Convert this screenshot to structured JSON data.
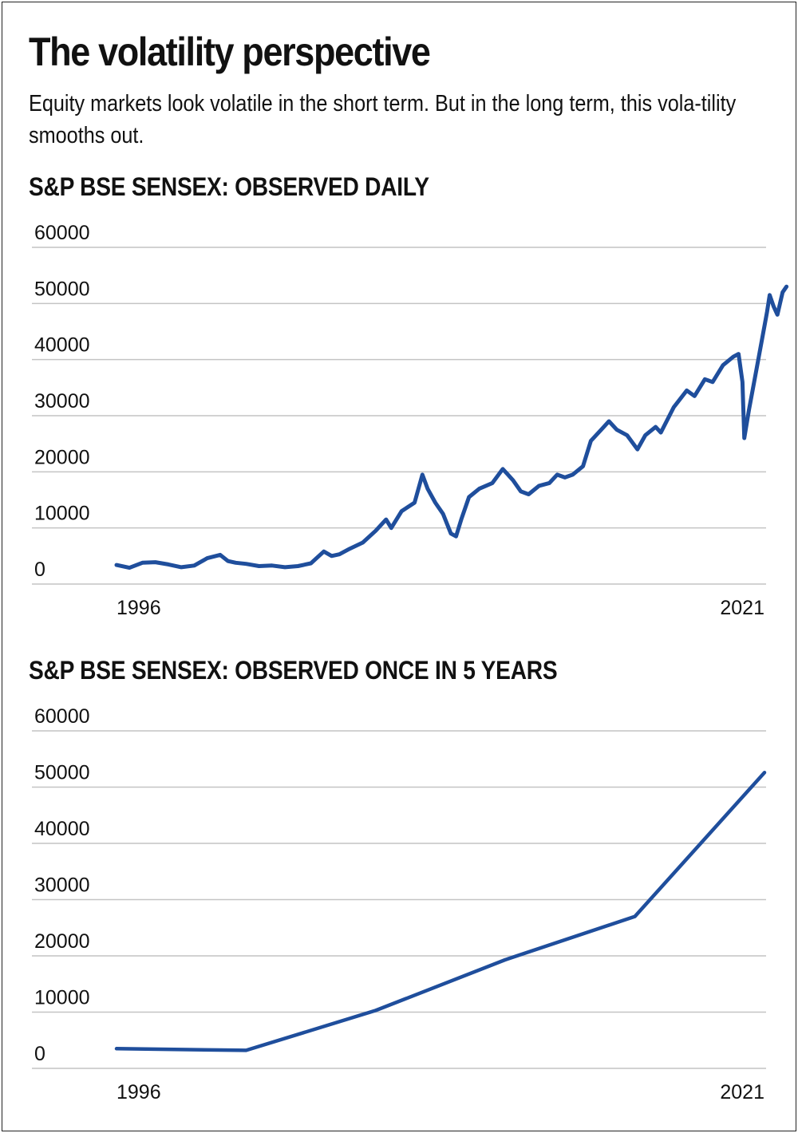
{
  "header": {
    "title": "The volatility perspective",
    "subtitle": "Equity markets look volatile in the short term. But in the long term, this vola-tility smooths out."
  },
  "colors": {
    "line": "#1f4e9c",
    "grid": "#c4c4c4",
    "text": "#111111"
  },
  "chart_data": [
    {
      "type": "line",
      "title": "S&P BSE SENSEX: OBSERVED DAILY",
      "x_tick_labels": [
        "1996",
        "2021"
      ],
      "y_ticks": [
        0,
        10000,
        20000,
        30000,
        40000,
        50000,
        60000
      ],
      "ylim": [
        0,
        60000
      ],
      "xlim": [
        1996,
        2021
      ],
      "grid": "horizontal",
      "x": [
        1996.0,
        1996.5,
        1997.0,
        1997.5,
        1998.0,
        1998.5,
        1999.0,
        1999.5,
        2000.0,
        2000.3,
        2000.6,
        2001.0,
        2001.5,
        2002.0,
        2002.5,
        2003.0,
        2003.5,
        2004.0,
        2004.3,
        2004.6,
        2005.0,
        2005.5,
        2006.0,
        2006.4,
        2006.6,
        2007.0,
        2007.5,
        2007.8,
        2008.0,
        2008.3,
        2008.6,
        2008.9,
        2009.1,
        2009.3,
        2009.6,
        2010.0,
        2010.5,
        2010.9,
        2011.3,
        2011.6,
        2011.9,
        2012.3,
        2012.7,
        2013.0,
        2013.3,
        2013.6,
        2014.0,
        2014.3,
        2014.7,
        2015.0,
        2015.3,
        2015.7,
        2016.1,
        2016.4,
        2016.8,
        2017.0,
        2017.5,
        2018.0,
        2018.3,
        2018.7,
        2019.0,
        2019.4,
        2019.8,
        2020.0,
        2020.15,
        2020.22,
        2020.4,
        2020.7,
        2021.0,
        2021.1,
        2021.2,
        2021.35,
        2021.5,
        2021.7,
        2021.85
      ],
      "y": [
        3400,
        2900,
        3800,
        3900,
        3500,
        3000,
        3300,
        4600,
        5200,
        4100,
        3800,
        3600,
        3200,
        3300,
        3000,
        3200,
        3700,
        5800,
        5000,
        5300,
        6300,
        7400,
        9500,
        11500,
        10000,
        13000,
        14500,
        19500,
        17000,
        14500,
        12500,
        9000,
        8500,
        11500,
        15500,
        17000,
        18000,
        20500,
        18500,
        16500,
        16000,
        17500,
        18000,
        19500,
        19000,
        19500,
        21000,
        25500,
        27500,
        29000,
        27500,
        26500,
        24000,
        26500,
        28000,
        27000,
        31500,
        34500,
        33500,
        36500,
        36000,
        39000,
        40500,
        41000,
        36000,
        26000,
        31000,
        38500,
        46000,
        48500,
        51500,
        49500,
        48000,
        52000,
        53000
      ]
    },
    {
      "type": "line",
      "title": "S&P BSE SENSEX: OBSERVED ONCE IN 5 YEARS",
      "x_tick_labels": [
        "1996",
        "2021"
      ],
      "y_ticks": [
        0,
        10000,
        20000,
        30000,
        40000,
        50000,
        60000
      ],
      "ylim": [
        0,
        60000
      ],
      "xlim": [
        1996,
        2021
      ],
      "grid": "horizontal",
      "x": [
        1996,
        2001,
        2006,
        2011,
        2016,
        2021
      ],
      "y": [
        3500,
        3200,
        10300,
        19300,
        27000,
        52600
      ]
    }
  ]
}
